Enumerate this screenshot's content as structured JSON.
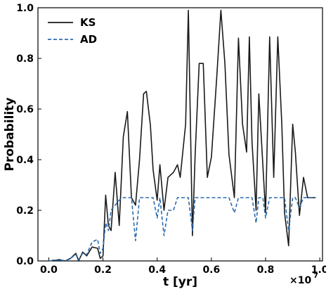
{
  "chart_data": {
    "type": "line",
    "xlabel": "t [yr]",
    "ylabel": "Probability",
    "x_offset_text": "×10",
    "x_offset_exp": "7",
    "xlim": [
      -0.04,
      1.01
    ],
    "ylim": [
      0.0,
      1.0
    ],
    "grid": false,
    "legend_position": "top-left",
    "x_ticks": [
      0.0,
      0.2,
      0.4,
      0.6,
      0.8,
      1.0
    ],
    "x_tick_labels": [
      "0.0",
      "0.2",
      "0.4",
      "0.6",
      "0.8",
      "1.0"
    ],
    "y_ticks": [
      0.0,
      0.2,
      0.4,
      0.6,
      0.8,
      1.0
    ],
    "y_tick_labels": [
      "0.0",
      "0.2",
      "0.4",
      "0.6",
      "0.8",
      "1.0"
    ],
    "series": [
      {
        "name": "KS",
        "color": "#1a1a1a",
        "dash": "solid",
        "x": [
          0.0,
          0.04,
          0.06,
          0.08,
          0.1,
          0.11,
          0.125,
          0.14,
          0.16,
          0.18,
          0.19,
          0.2,
          0.21,
          0.22,
          0.23,
          0.245,
          0.26,
          0.275,
          0.29,
          0.305,
          0.32,
          0.335,
          0.35,
          0.36,
          0.375,
          0.385,
          0.4,
          0.41,
          0.425,
          0.44,
          0.46,
          0.475,
          0.485,
          0.505,
          0.515,
          0.53,
          0.54,
          0.555,
          0.57,
          0.585,
          0.6,
          0.62,
          0.635,
          0.65,
          0.665,
          0.685,
          0.7,
          0.715,
          0.73,
          0.74,
          0.75,
          0.765,
          0.775,
          0.79,
          0.8,
          0.815,
          0.83,
          0.845,
          0.86,
          0.87,
          0.885,
          0.9,
          0.91,
          0.925,
          0.94,
          0.955,
          0.965,
          0.975,
          0.985
        ],
        "values": [
          0.0,
          0.005,
          0.0,
          0.01,
          0.03,
          0.0,
          0.035,
          0.02,
          0.055,
          0.05,
          0.01,
          0.02,
          0.26,
          0.14,
          0.12,
          0.35,
          0.14,
          0.49,
          0.59,
          0.25,
          0.22,
          0.4,
          0.66,
          0.67,
          0.535,
          0.36,
          0.24,
          0.38,
          0.2,
          0.33,
          0.35,
          0.38,
          0.33,
          0.54,
          0.99,
          0.1,
          0.415,
          0.78,
          0.78,
          0.33,
          0.41,
          0.73,
          0.99,
          0.78,
          0.42,
          0.25,
          0.88,
          0.54,
          0.43,
          0.885,
          0.47,
          0.2,
          0.66,
          0.38,
          0.19,
          0.885,
          0.33,
          0.885,
          0.54,
          0.19,
          0.06,
          0.54,
          0.43,
          0.18,
          0.33,
          0.25,
          0.25,
          0.25,
          0.25
        ]
      },
      {
        "name": "AD",
        "color": "#2b6cb0",
        "dash": "dashed",
        "x": [
          0.0,
          0.04,
          0.06,
          0.08,
          0.1,
          0.11,
          0.125,
          0.14,
          0.16,
          0.18,
          0.19,
          0.2,
          0.21,
          0.22,
          0.23,
          0.245,
          0.26,
          0.275,
          0.29,
          0.305,
          0.32,
          0.335,
          0.35,
          0.36,
          0.375,
          0.385,
          0.4,
          0.41,
          0.425,
          0.44,
          0.46,
          0.475,
          0.485,
          0.505,
          0.515,
          0.53,
          0.54,
          0.555,
          0.57,
          0.585,
          0.6,
          0.62,
          0.635,
          0.65,
          0.665,
          0.685,
          0.7,
          0.715,
          0.73,
          0.74,
          0.75,
          0.765,
          0.775,
          0.79,
          0.8,
          0.815,
          0.83,
          0.845,
          0.86,
          0.87,
          0.885,
          0.9,
          0.91,
          0.925,
          0.94,
          0.955,
          0.965,
          0.975,
          0.985
        ],
        "values": [
          0.0,
          0.005,
          0.0,
          0.01,
          0.025,
          0.005,
          0.03,
          0.025,
          0.075,
          0.085,
          0.03,
          0.05,
          0.15,
          0.12,
          0.2,
          0.22,
          0.24,
          0.25,
          0.25,
          0.25,
          0.08,
          0.25,
          0.25,
          0.25,
          0.25,
          0.25,
          0.17,
          0.25,
          0.1,
          0.2,
          0.2,
          0.25,
          0.25,
          0.25,
          0.25,
          0.12,
          0.25,
          0.25,
          0.25,
          0.25,
          0.25,
          0.25,
          0.25,
          0.25,
          0.25,
          0.19,
          0.25,
          0.25,
          0.25,
          0.25,
          0.25,
          0.15,
          0.25,
          0.25,
          0.17,
          0.25,
          0.25,
          0.25,
          0.25,
          0.25,
          0.12,
          0.25,
          0.25,
          0.21,
          0.25,
          0.25,
          0.25,
          0.25,
          0.25
        ]
      }
    ]
  }
}
